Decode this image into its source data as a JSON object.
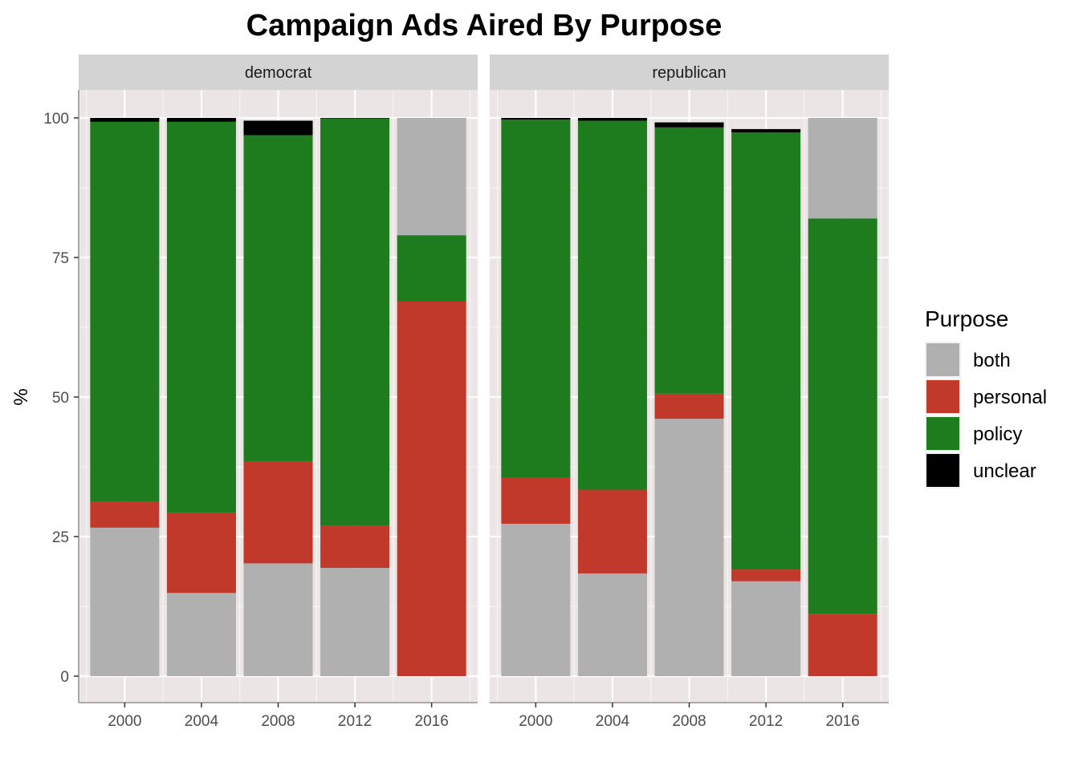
{
  "chart_data": {
    "type": "bar",
    "stacked": true,
    "title": "Campaign Ads Aired By Purpose",
    "ylabel": "%",
    "xlabel": "",
    "ylim": [
      0,
      100
    ],
    "yticks": [
      "0",
      "25",
      "50",
      "75",
      "100"
    ],
    "categories": [
      "2000",
      "2004",
      "2008",
      "2012",
      "2016"
    ],
    "legend": {
      "title": "Purpose",
      "position": "right"
    },
    "grid": true,
    "series_order": [
      "both",
      "personal",
      "policy",
      "unclear"
    ],
    "colors": {
      "both": "#b0b0b0",
      "personal": "#c0392b",
      "policy": "#1e7b1e",
      "unclear": "#000000"
    },
    "facets": [
      {
        "label": "democrat",
        "series": [
          {
            "name": "both",
            "values": [
              26.6,
              14.9,
              20.2,
              19.4,
              0
            ]
          },
          {
            "name": "personal",
            "values": [
              4.6,
              14.3,
              18.3,
              7.6,
              67.1
            ]
          },
          {
            "name": "policy",
            "values": [
              68.1,
              70.1,
              58.4,
              72.9,
              11.9
            ]
          },
          {
            "name": "unclear",
            "values": [
              0.7,
              0.7,
              2.6,
              0.1,
              0
            ]
          },
          {
            "name": "both_top",
            "values": [
              0,
              0,
              0,
              0,
              21.0
            ]
          }
        ]
      },
      {
        "label": "republican",
        "series": [
          {
            "name": "both",
            "values": [
              27.3,
              18.4,
              46.1,
              17.0,
              0
            ]
          },
          {
            "name": "personal",
            "values": [
              8.2,
              15.0,
              4.5,
              2.1,
              11.1
            ]
          },
          {
            "name": "policy",
            "values": [
              64.2,
              66.1,
              47.7,
              78.3,
              70.9
            ]
          },
          {
            "name": "unclear",
            "values": [
              0.3,
              0.5,
              0.9,
              0.6,
              0
            ]
          },
          {
            "name": "both_top",
            "values": [
              0,
              0,
              0,
              0,
              18.0
            ]
          }
        ]
      }
    ]
  }
}
